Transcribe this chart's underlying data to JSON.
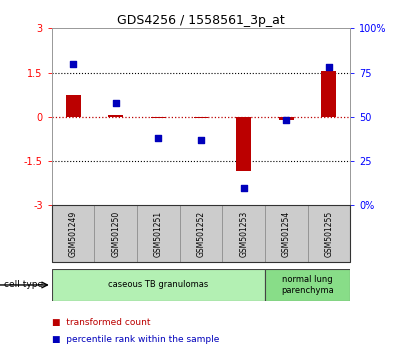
{
  "title": "GDS4256 / 1558561_3p_at",
  "samples": [
    "GSM501249",
    "GSM501250",
    "GSM501251",
    "GSM501252",
    "GSM501253",
    "GSM501254",
    "GSM501255"
  ],
  "transformed_counts": [
    0.75,
    0.05,
    -0.05,
    -0.05,
    -1.85,
    -0.12,
    1.55
  ],
  "percentile_ranks": [
    80,
    58,
    38,
    37,
    10,
    48,
    78
  ],
  "ylim_left": [
    -3,
    3
  ],
  "ylim_right": [
    0,
    100
  ],
  "yticks_left": [
    -3,
    -1.5,
    0,
    1.5,
    3
  ],
  "yticks_right": [
    0,
    25,
    50,
    75,
    100
  ],
  "ytick_labels_left": [
    "-3",
    "-1.5",
    "0",
    "1.5",
    "3"
  ],
  "ytick_labels_right": [
    "0%",
    "25",
    "50",
    "75",
    "100%"
  ],
  "hlines_dotted": [
    1.5,
    -1.5
  ],
  "hline_red": 0,
  "bar_color": "#bb0000",
  "dot_color": "#0000bb",
  "cell_type_groups": [
    {
      "label": "caseous TB granulomas",
      "start": 0,
      "end": 4,
      "color": "#b3f0b3"
    },
    {
      "label": "normal lung\nparenchyma",
      "start": 5,
      "end": 6,
      "color": "#88dd88"
    }
  ],
  "cell_type_label": "cell type",
  "legend_bar_label": "transformed count",
  "legend_dot_label": "percentile rank within the sample",
  "bg_color": "#ffffff",
  "tick_bg_color": "#cccccc",
  "bar_width": 0.35,
  "dot_size": 25
}
